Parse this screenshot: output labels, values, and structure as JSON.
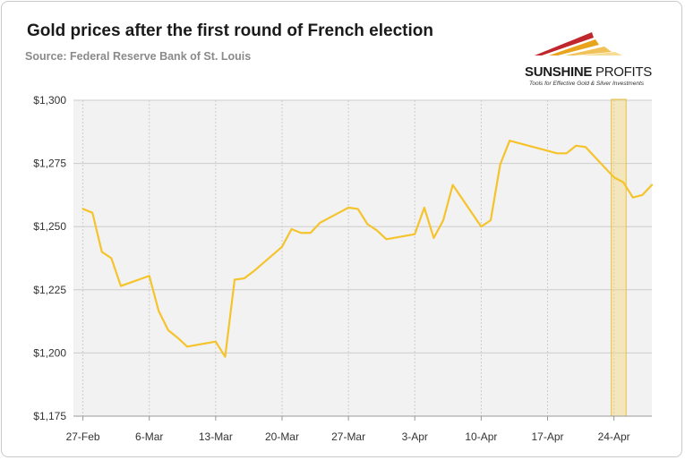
{
  "title": "Gold prices after the first round of French election",
  "subtitle": "Source: Federal Reserve Bank of St. Louis",
  "logo": {
    "name_bold": "SUNSHINE",
    "name_light": " PROFITS",
    "tagline": "Tools for Effective Gold & Silver Investments",
    "colors": [
      "#c0272d",
      "#e8a41c",
      "#f2c25a"
    ]
  },
  "colors": {
    "line": "#f5c32c",
    "plot_background": "#f2f2f2",
    "grid": "#cccccc",
    "highlight_fill": "#f5d87a",
    "highlight_stroke": "#e8c040"
  },
  "chart_data": {
    "type": "line",
    "title": "Gold prices after the first round of French election",
    "subtitle": "Source: Federal Reserve Bank of St. Louis",
    "xlabel": "",
    "ylabel": "",
    "x_tick_labels": [
      "27-Feb",
      "6-Mar",
      "13-Mar",
      "20-Mar",
      "27-Mar",
      "3-Apr",
      "10-Apr",
      "17-Apr",
      "24-Apr"
    ],
    "y_tick_labels": [
      "$1,175",
      "$1,200",
      "$1,225",
      "$1,250",
      "$1,275",
      "$1,300"
    ],
    "ylim": [
      1175,
      1300
    ],
    "xlim": [
      "2017-02-26",
      "2017-04-28"
    ],
    "grid": true,
    "highlight_range": [
      "2017-04-24",
      "2017-04-25"
    ],
    "series": [
      {
        "x": [
          "2017-02-27",
          "2017-02-28",
          "2017-03-01",
          "2017-03-02",
          "2017-03-03",
          "2017-03-06",
          "2017-03-07",
          "2017-03-08",
          "2017-03-09",
          "2017-03-10",
          "2017-03-13",
          "2017-03-14",
          "2017-03-15",
          "2017-03-16",
          "2017-03-17",
          "2017-03-20",
          "2017-03-21",
          "2017-03-22",
          "2017-03-23",
          "2017-03-24",
          "2017-03-27",
          "2017-03-28",
          "2017-03-29",
          "2017-03-30",
          "2017-03-31",
          "2017-04-03",
          "2017-04-04",
          "2017-04-05",
          "2017-04-06",
          "2017-04-07",
          "2017-04-10",
          "2017-04-11",
          "2017-04-12",
          "2017-04-13",
          "2017-04-18",
          "2017-04-19",
          "2017-04-20",
          "2017-04-21",
          "2017-04-24",
          "2017-04-25",
          "2017-04-26",
          "2017-04-27",
          "2017-04-28"
        ],
        "y": [
          1257,
          1255.5,
          1240,
          1237.5,
          1226.5,
          1230.5,
          1216.5,
          1209,
          1206,
          1202.5,
          1204.5,
          1198.5,
          1229,
          1229.5,
          1232.3,
          1242,
          1249,
          1247.5,
          1247.5,
          1251.5,
          1257.5,
          1257,
          1251,
          1248.5,
          1245,
          1247,
          1257.5,
          1245.5,
          1252.5,
          1266.5,
          1250,
          1252.5,
          1274.5,
          1284,
          1279,
          1279,
          1282,
          1281.5,
          1269.5,
          1267.5,
          1261.5,
          1262.5,
          1266.5
        ]
      }
    ]
  }
}
